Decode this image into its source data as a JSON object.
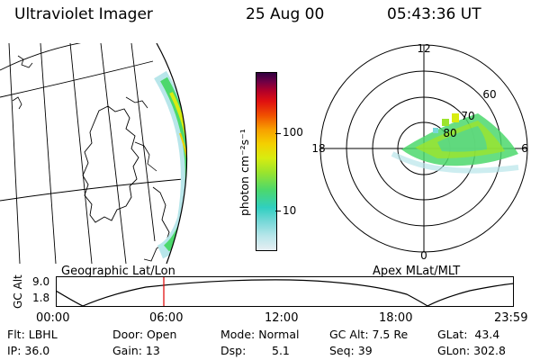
{
  "header": {
    "title": "Ultraviolet Imager",
    "date": "25 Aug 00",
    "time": "05:43:36 UT"
  },
  "colorbar": {
    "unit_label": "photon cm⁻²s⁻¹",
    "tick_100": "100",
    "tick_10": "10",
    "colors": [
      "#e6eef2",
      "#b8e6ea",
      "#78d8d8",
      "#30cfc0",
      "#4cd86c",
      "#9ce42c",
      "#d8ec10",
      "#f4d000",
      "#f8a000",
      "#f05000",
      "#e01010",
      "#b0002a",
      "#700045",
      "#300040"
    ]
  },
  "polar": {
    "label_12": "12",
    "label_18": "18",
    "label_6": "6",
    "label_0": "0",
    "label_60": "60",
    "label_70": "70",
    "label_80": "80"
  },
  "map_labels": {
    "geo": "Geographic Lat/Lon",
    "apex": "Apex MLat/MLT"
  },
  "timeline": {
    "axis_title": "GC Alt",
    "y_top": "9.0",
    "y_bottom": "1.8",
    "times": [
      "00:00",
      "06:00",
      "12:00",
      "18:00",
      "23:59"
    ]
  },
  "info": {
    "flt": "Flt: LBHL",
    "ip": "IP: 36.0",
    "door": "Door: Open",
    "gain": "Gain: 13",
    "mode": "Mode: Normal",
    "dsp_label": "Dsp:",
    "dsp_value": "5.1",
    "gcalt": "GC Alt: 7.5 Re",
    "seq": "Seq: 39",
    "glat": "GLat:  43.4",
    "glon": "GLon: 302.8"
  }
}
